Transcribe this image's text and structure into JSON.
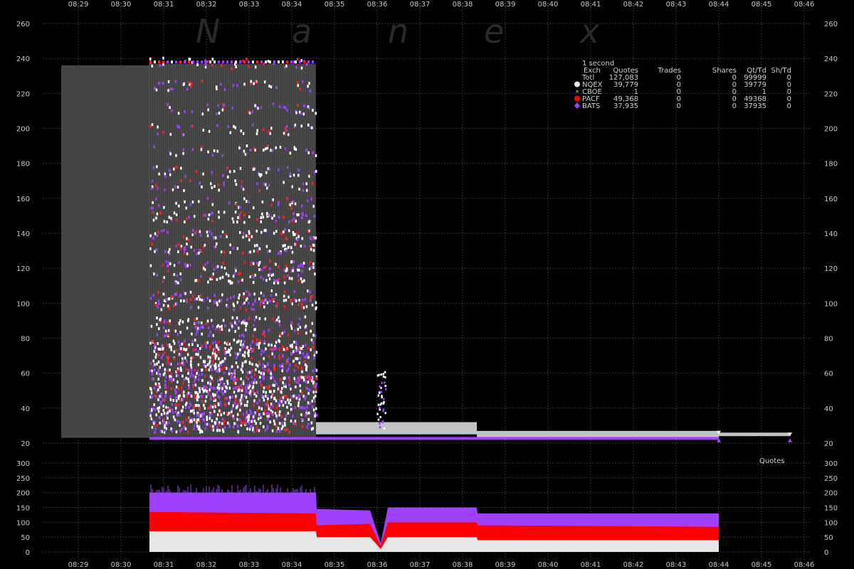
{
  "watermark_letters": [
    "N",
    "a",
    "n",
    "e",
    "x"
  ],
  "chart_data": [
    {
      "type": "scatter",
      "title": "",
      "x_tick_labels": [
        "08:29",
        "08:30",
        "08:31",
        "08:32",
        "08:33",
        "08:34",
        "08:35",
        "08:36",
        "08:37",
        "08:38",
        "08:39",
        "08:40",
        "08:41",
        "08:42",
        "08:43",
        "08:44",
        "08:45",
        "08:46"
      ],
      "xlim_minutes": [
        8.47,
        8.78
      ],
      "y_ticks": [
        20,
        40,
        60,
        80,
        100,
        120,
        140,
        160,
        180,
        200,
        220,
        240,
        260
      ],
      "ylim": [
        20,
        262
      ],
      "grid": true,
      "legend": {
        "placement": "top-right",
        "interval": "1 second",
        "columns": [
          "Exch",
          "Quotes",
          "Trades",
          "Shares",
          "Qt/Td",
          "Sh/Td"
        ],
        "rows": [
          {
            "exch": "Totl",
            "quotes": "127,083",
            "trades": "0",
            "shares": "0",
            "qt_td": "99999",
            "sh_td": "0",
            "color": "",
            "marker": ""
          },
          {
            "exch": "NQEX",
            "quotes": "39,779",
            "trades": "0",
            "shares": "0",
            "qt_td": "39779",
            "sh_td": "0",
            "color": "#e6e6e6",
            "marker": "circle"
          },
          {
            "exch": "CBOE",
            "quotes": "1",
            "trades": "0",
            "shares": "0",
            "qt_td": "1",
            "sh_td": "0",
            "color": "#3a8a3a",
            "marker": "dot"
          },
          {
            "exch": "PACF",
            "quotes": "49,368",
            "trades": "0",
            "shares": "0",
            "qt_td": "49368",
            "sh_td": "0",
            "color": "#ff0000",
            "marker": "circle"
          },
          {
            "exch": "BATS",
            "quotes": "37,935",
            "trades": "0",
            "shares": "0",
            "qt_td": "37935",
            "sh_td": "0",
            "color": "#a040ff",
            "marker": "diamond"
          }
        ]
      },
      "price_band_segments": [
        {
          "x_start": "08:28:36",
          "x_end": "08:30:40",
          "low": 23,
          "high": 236,
          "note": "spread band"
        },
        {
          "x_start": "08:30:40",
          "x_end": "08:34:34",
          "low": 23,
          "high": 237
        },
        {
          "x_start": "08:34:34",
          "x_end": "08:38:20",
          "low": 25,
          "high": 32
        },
        {
          "x_start": "08:38:20",
          "x_end": "08:44:00",
          "low": 23,
          "high": 27
        },
        {
          "x_start": "08:44:00",
          "x_end": "08:45:40",
          "low": 24,
          "high": 26
        }
      ],
      "quote_levels": [
        238,
        225,
        212,
        200,
        188,
        176,
        168,
        158,
        150,
        140,
        132,
        122,
        115,
        105,
        100,
        90,
        85,
        77,
        72,
        65,
        60,
        55,
        50,
        45,
        40,
        35,
        30
      ]
    },
    {
      "type": "area",
      "label": "Quotes",
      "y_ticks": [
        0,
        50,
        100,
        150,
        200,
        250,
        300
      ],
      "ylim": [
        0,
        310
      ],
      "series": [
        {
          "name": "NQEX",
          "color": "#e6e6e6",
          "points": [
            [
              "08:30:40",
              70
            ],
            [
              "08:34:34",
              70
            ],
            [
              "08:34:35",
              50
            ],
            [
              "08:35:50",
              50
            ],
            [
              "08:36:05",
              10
            ],
            [
              "08:36:15",
              50
            ],
            [
              "08:38:20",
              50
            ],
            [
              "08:38:21",
              40
            ],
            [
              "08:44:00",
              40
            ]
          ]
        },
        {
          "name": "PACF",
          "color": "#ff0000",
          "points": [
            [
              "08:30:40",
              135
            ],
            [
              "08:34:34",
              130
            ],
            [
              "08:34:35",
              90
            ],
            [
              "08:35:50",
              95
            ],
            [
              "08:36:05",
              20
            ],
            [
              "08:36:15",
              100
            ],
            [
              "08:38:20",
              100
            ],
            [
              "08:38:21",
              90
            ],
            [
              "08:44:00",
              85
            ]
          ]
        },
        {
          "name": "BATS",
          "color": "#a040ff",
          "points": [
            [
              "08:30:40",
              200
            ],
            [
              "08:34:34",
              200
            ],
            [
              "08:34:35",
              145
            ],
            [
              "08:35:50",
              140
            ],
            [
              "08:36:05",
              30
            ],
            [
              "08:36:15",
              150
            ],
            [
              "08:38:20",
              150
            ],
            [
              "08:38:21",
              130
            ],
            [
              "08:44:00",
              130
            ]
          ]
        }
      ]
    }
  ]
}
